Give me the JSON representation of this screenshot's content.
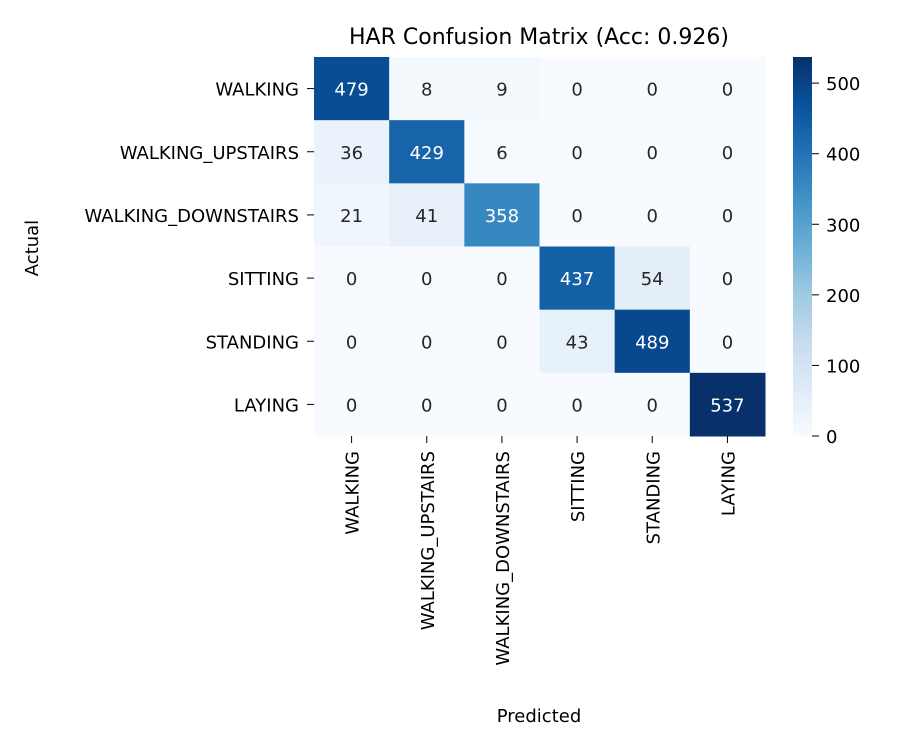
{
  "chart_data": {
    "type": "heatmap",
    "title": "HAR Confusion Matrix (Acc: 0.926)",
    "xlabel": "Predicted",
    "ylabel": "Actual",
    "x_categories": [
      "WALKING",
      "WALKING_UPSTAIRS",
      "WALKING_DOWNSTAIRS",
      "SITTING",
      "STANDING",
      "LAYING"
    ],
    "y_categories": [
      "WALKING",
      "WALKING_UPSTAIRS",
      "WALKING_DOWNSTAIRS",
      "SITTING",
      "STANDING",
      "LAYING"
    ],
    "values": [
      [
        479,
        8,
        9,
        0,
        0,
        0
      ],
      [
        36,
        429,
        6,
        0,
        0,
        0
      ],
      [
        21,
        41,
        358,
        0,
        0,
        0
      ],
      [
        0,
        0,
        0,
        437,
        54,
        0
      ],
      [
        0,
        0,
        0,
        43,
        489,
        0
      ],
      [
        0,
        0,
        0,
        0,
        0,
        537
      ]
    ],
    "colormap": "Blues",
    "colormap_stops": [
      "#f7fbff",
      "#deebf7",
      "#c6dbef",
      "#9ecae1",
      "#6baed6",
      "#4292c6",
      "#2171b5",
      "#08519c",
      "#08306b"
    ],
    "color_range": [
      0,
      537
    ],
    "colorbar_ticks": [
      0,
      100,
      200,
      300,
      400,
      500
    ],
    "annotations": true,
    "grid": false,
    "legend": "colorbar-right"
  }
}
